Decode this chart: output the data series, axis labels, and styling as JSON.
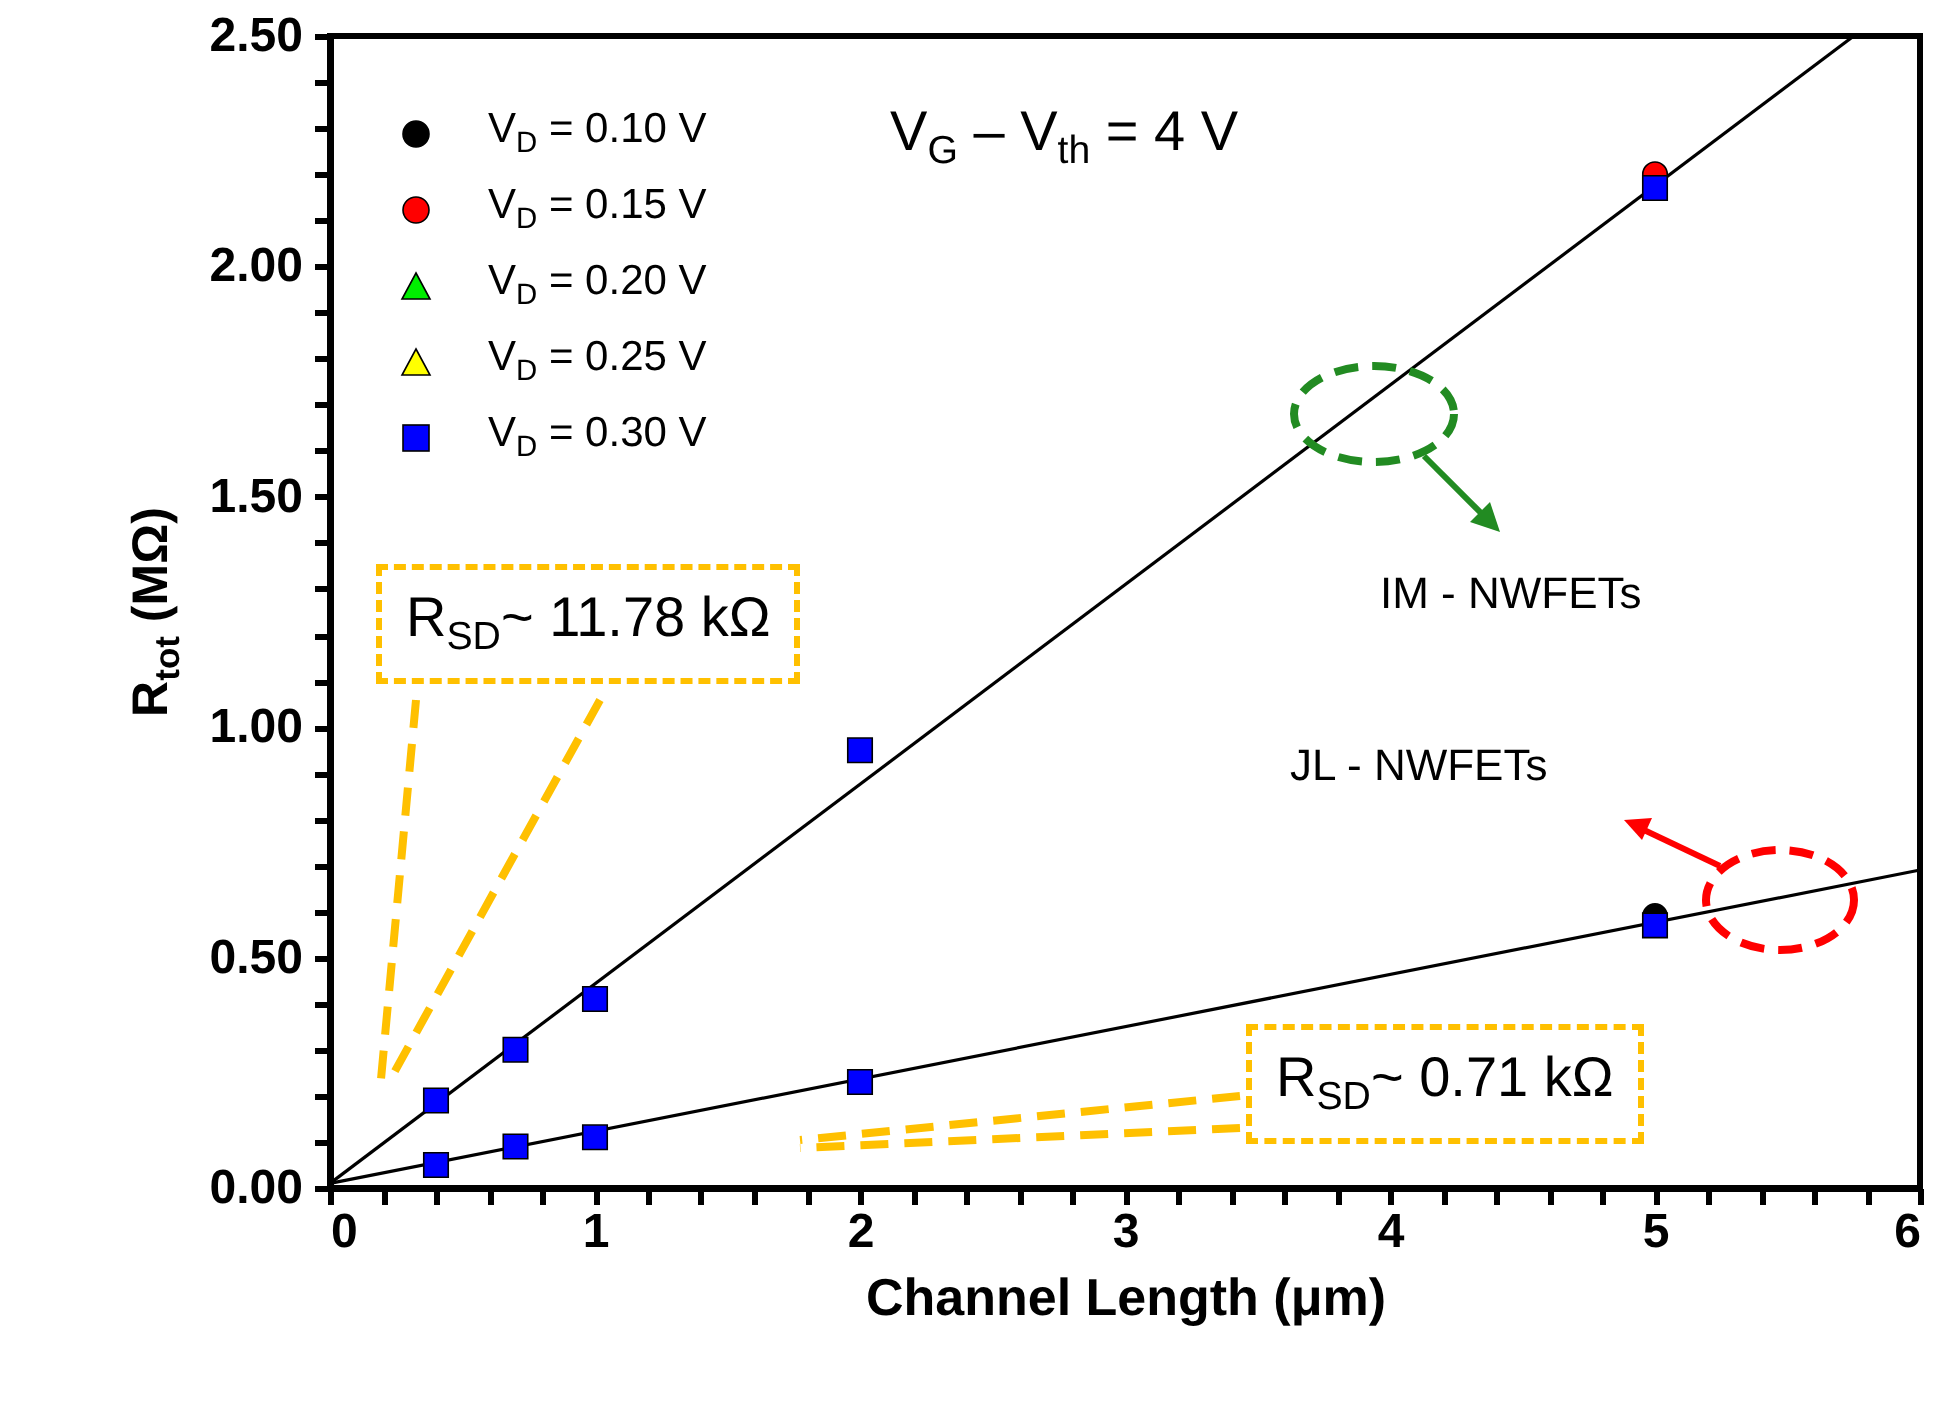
{
  "chart_data": {
    "type": "scatter",
    "xlabel": "Channel Length (μm)",
    "ylabel": "R$_{tot}$ (MΩ)",
    "xlim": [
      0,
      6
    ],
    "ylim": [
      0,
      2.5
    ],
    "xticks": [
      0,
      {
        "value": 0.2,
        "label": null
      },
      {
        "value": 0.4,
        "label": null
      },
      {
        "value": 0.6,
        "label": null
      },
      {
        "value": 0.8,
        "label": null
      },
      1,
      {
        "value": 1.2,
        "label": null
      },
      {
        "value": 1.4,
        "label": null
      },
      {
        "value": 1.6,
        "label": null
      },
      {
        "value": 1.8,
        "label": null
      },
      2,
      {
        "value": 2.2,
        "label": null
      },
      {
        "value": 2.4,
        "label": null
      },
      {
        "value": 2.6,
        "label": null
      },
      {
        "value": 2.8,
        "label": null
      },
      3,
      {
        "value": 3.2,
        "label": null
      },
      {
        "value": 3.4,
        "label": null
      },
      {
        "value": 3.6,
        "label": null
      },
      {
        "value": 3.8,
        "label": null
      },
      4,
      {
        "value": 4.2,
        "label": null
      },
      {
        "value": 4.4,
        "label": null
      },
      {
        "value": 4.6,
        "label": null
      },
      {
        "value": 4.8,
        "label": null
      },
      5,
      {
        "value": 5.2,
        "label": null
      },
      {
        "value": 5.4,
        "label": null
      },
      {
        "value": 5.6,
        "label": null
      },
      {
        "value": 5.8,
        "label": null
      },
      6
    ],
    "yticks": [
      {
        "value": 0,
        "label": "0.00"
      },
      {
        "value": 0.1,
        "label": null
      },
      {
        "value": 0.2,
        "label": null
      },
      {
        "value": 0.3,
        "label": null
      },
      {
        "value": 0.4,
        "label": null
      },
      {
        "value": 0.5,
        "label": "0.50"
      },
      {
        "value": 0.6,
        "label": null
      },
      {
        "value": 0.7,
        "label": null
      },
      {
        "value": 0.8,
        "label": null
      },
      {
        "value": 0.9,
        "label": null
      },
      {
        "value": 1,
        "label": "1.00"
      },
      {
        "value": 1.1,
        "label": null
      },
      {
        "value": 1.2,
        "label": null
      },
      {
        "value": 1.3,
        "label": null
      },
      {
        "value": 1.4,
        "label": null
      },
      {
        "value": 1.5,
        "label": "1.50"
      },
      {
        "value": 1.6,
        "label": null
      },
      {
        "value": 1.7,
        "label": null
      },
      {
        "value": 1.8,
        "label": null
      },
      {
        "value": 1.9,
        "label": null
      },
      {
        "value": 2,
        "label": "2.00"
      },
      {
        "value": 2.1,
        "label": null
      },
      {
        "value": 2.2,
        "label": null
      },
      {
        "value": 2.3,
        "label": null
      },
      {
        "value": 2.4,
        "label": null
      },
      {
        "value": 2.5,
        "label": "2.50"
      }
    ],
    "grid": false,
    "legend": "top left",
    "series": [
      {
        "name": "V$_{D}$ = 0.10 V",
        "color": "#000000",
        "marker": "circle",
        "x": [
          5
        ],
        "values": [
          0.59
        ]
      },
      {
        "name": "V$_{D}$ = 0.15 V",
        "color": "#ff0000",
        "marker": "circle",
        "x": [
          5
        ],
        "values": [
          2.2
        ]
      },
      {
        "name": "V$_{D}$ = 0.20 V",
        "color": "#00ee00",
        "marker": "triangle"
      },
      {
        "name": "V$_{D}$ = 0.25 V",
        "color": "#ffff00",
        "marker": "triangle"
      },
      {
        "name": "V$_{D}$ = 0.30 V",
        "color": "#0000ff",
        "marker": "square",
        "x": [
          0.4,
          0.7,
          1,
          2,
          5,
          0.4,
          0.7,
          1,
          2,
          5
        ],
        "values": [
          0.19,
          0.3,
          0.41,
          0.95,
          2.17,
          0.05,
          0.09,
          0.11,
          0.23,
          0.57
        ]
      },
      {
        "type": "line",
        "color": "#000000",
        "marker": "none",
        "x": [
          0,
          5.75
        ],
        "values": [
          0.01,
          2.5
        ]
      },
      {
        "type": "line",
        "color": "#000000",
        "marker": "none",
        "x": [
          0,
          6
        ],
        "values": [
          0.01,
          0.69
        ]
      }
    ],
    "annotations": [
      "V$_{G}$ – V$_{th}$ = 4 V",
      "IM - NWFETs",
      "JL - NWFETs",
      "R$_{SD}$~ 11.78 kΩ",
      "R$_{SD}$~ 0.71 kΩ"
    ]
  }
}
